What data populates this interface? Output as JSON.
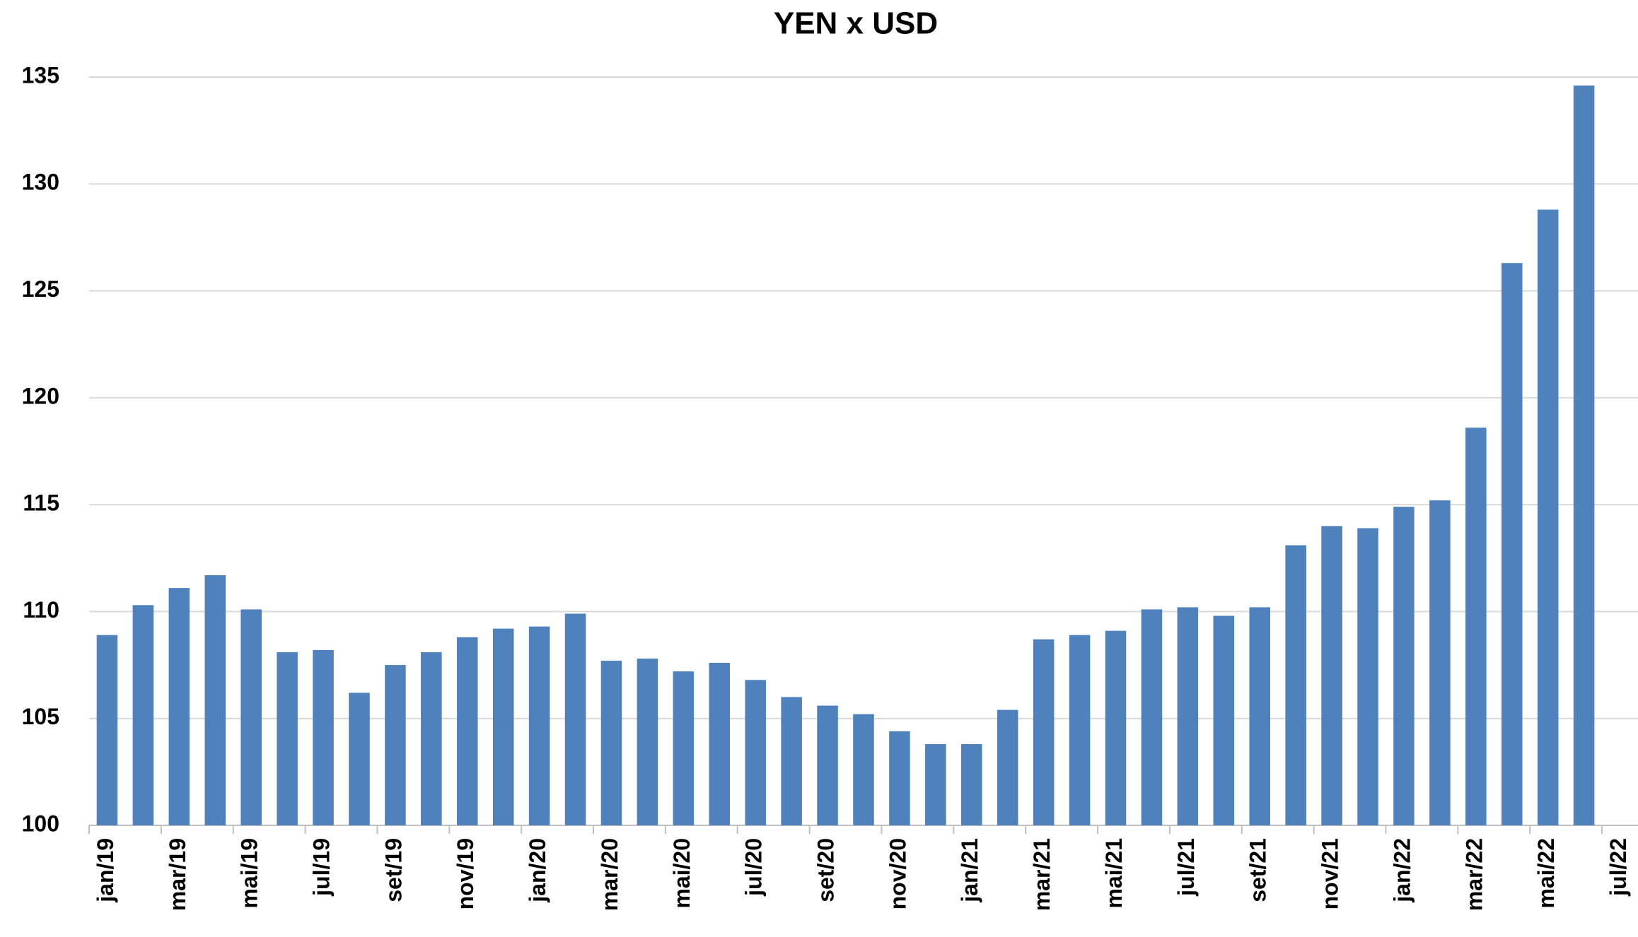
{
  "chart_data": {
    "type": "bar",
    "title": "YEN x USD",
    "categories": [
      "jan/19",
      null,
      "mar/19",
      null,
      "mai/19",
      null,
      "jul/19",
      null,
      "set/19",
      null,
      "nov/19",
      null,
      "jan/20",
      null,
      "mar/20",
      null,
      "mai/20",
      null,
      "jul/20",
      null,
      "set/20",
      null,
      "nov/20",
      null,
      "jan/21",
      null,
      "mar/21",
      null,
      "mai/21",
      null,
      "jul/21",
      null,
      "set/21",
      null,
      "nov/21",
      null,
      "jan/22",
      null,
      "mar/22",
      null,
      "mai/22",
      null,
      "jul/22"
    ],
    "values": [
      108.9,
      110.3,
      111.1,
      111.7,
      110.1,
      108.1,
      108.2,
      106.2,
      107.5,
      108.1,
      108.8,
      109.2,
      109.3,
      109.9,
      107.7,
      107.8,
      107.2,
      107.6,
      106.8,
      106.0,
      105.6,
      105.2,
      104.4,
      103.8,
      103.8,
      105.4,
      108.7,
      108.9,
      109.1,
      110.1,
      110.2,
      109.8,
      110.2,
      113.1,
      114.0,
      113.9,
      114.9,
      115.2,
      118.6,
      126.3,
      128.8,
      134.6,
      null
    ],
    "color": "#4f81bd",
    "ylim": [
      100,
      135
    ],
    "yticks": [
      100,
      105,
      110,
      115,
      120,
      125,
      130,
      135
    ],
    "grid": true
  }
}
